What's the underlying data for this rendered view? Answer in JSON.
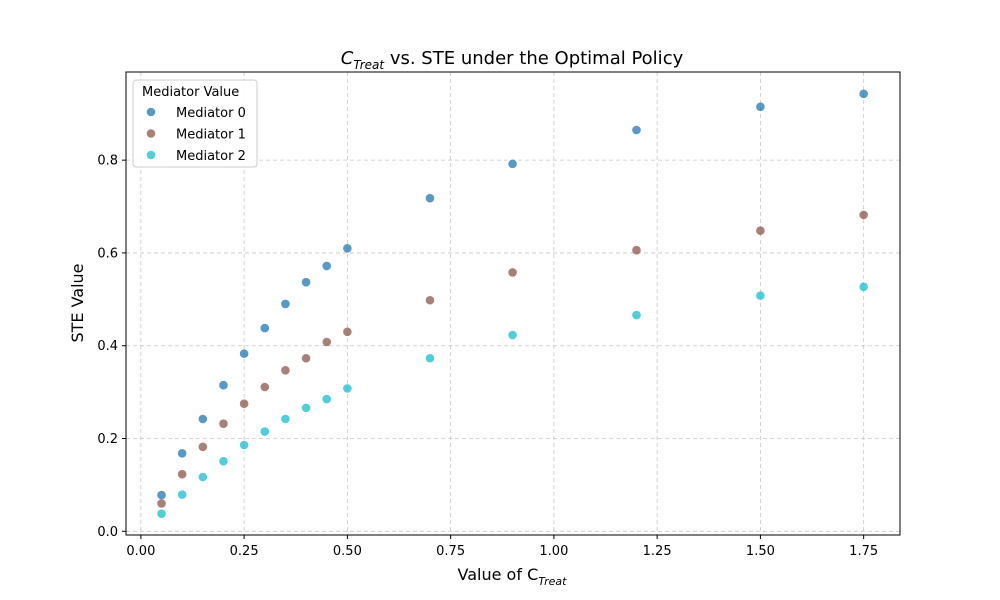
{
  "chart_data": {
    "type": "scatter",
    "title": {
      "base": "C",
      "sub": "Treat",
      "rest": " vs. STE under the Optimal Policy"
    },
    "xlabel": {
      "base": "Value of C",
      "sub": "Treat"
    },
    "ylabel": "STE Value",
    "xlim": [
      -0.036,
      1.838
    ],
    "ylim": [
      -0.008,
      0.99
    ],
    "xticks": [
      "0.00",
      "0.25",
      "0.50",
      "0.75",
      "1.00",
      "1.25",
      "1.50",
      "1.75"
    ],
    "yticks": [
      "0.0",
      "0.2",
      "0.4",
      "0.6",
      "0.8"
    ],
    "grid": true,
    "legend": {
      "title": "Mediator Value",
      "placement": "top-left"
    },
    "x": [
      0.05,
      0.1,
      0.15,
      0.2,
      0.25,
      0.3,
      0.35,
      0.4,
      0.45,
      0.5,
      0.7,
      0.9,
      1.2,
      1.5,
      1.75
    ],
    "series": [
      {
        "name": "Mediator 0",
        "color": "#1f77b4",
        "values": [
          0.078,
          0.168,
          0.242,
          0.315,
          0.383,
          0.438,
          0.49,
          0.537,
          0.572,
          0.61,
          0.718,
          0.792,
          0.865,
          0.915,
          0.943
        ]
      },
      {
        "name": "Mediator 1",
        "color": "#8c564b",
        "values": [
          0.06,
          0.123,
          0.182,
          0.232,
          0.275,
          0.311,
          0.347,
          0.373,
          0.408,
          0.43,
          0.498,
          0.558,
          0.606,
          0.648,
          0.682
        ]
      },
      {
        "name": "Mediator 2",
        "color": "#17becf",
        "values": [
          0.038,
          0.079,
          0.117,
          0.151,
          0.186,
          0.215,
          0.242,
          0.266,
          0.285,
          0.308,
          0.373,
          0.423,
          0.466,
          0.508,
          0.527
        ]
      }
    ]
  }
}
